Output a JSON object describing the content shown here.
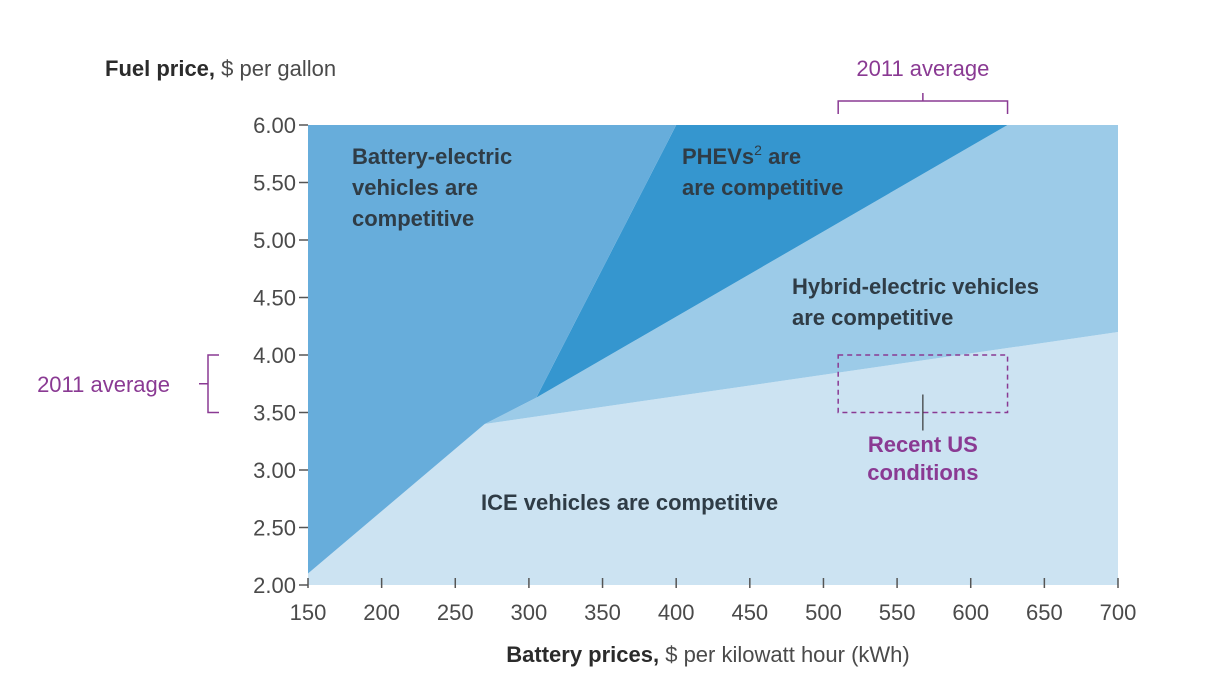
{
  "chart_data": {
    "type": "area",
    "ylabel_bold": "Fuel price,",
    "ylabel_rest": " $ per gallon",
    "xlabel_bold": "Battery prices,",
    "xlabel_rest": " $ per kilowatt hour (kWh)",
    "xlim": [
      150,
      700
    ],
    "ylim": [
      2.0,
      6.0
    ],
    "x_ticks": [
      "150",
      "200",
      "250",
      "300",
      "350",
      "400",
      "450",
      "500",
      "550",
      "600",
      "650",
      "700"
    ],
    "y_ticks": [
      "2.00",
      "2.50",
      "3.00",
      "3.50",
      "4.00",
      "4.50",
      "5.00",
      "5.50",
      "6.00"
    ],
    "x_tick_values": [
      150,
      200,
      250,
      300,
      350,
      400,
      450,
      500,
      550,
      600,
      650,
      700
    ],
    "y_tick_values": [
      2.0,
      2.5,
      3.0,
      3.5,
      4.0,
      4.5,
      5.0,
      5.5,
      6.0
    ],
    "regions": [
      {
        "name": "ICE vehicles are competitive",
        "label_lines": [
          "ICE vehicles are competitive"
        ],
        "label_at": [
          150,
          2.55
        ],
        "color": "#cce3f2",
        "polygon": [
          [
            150,
            2.1
          ],
          [
            270,
            3.4
          ],
          [
            700,
            4.2
          ],
          [
            700,
            2.0
          ],
          [
            150,
            2.0
          ]
        ]
      },
      {
        "name": "Hybrid-electric vehicles are competitive",
        "label_lines": [
          "Hybrid-electric vehicles",
          "are competitive"
        ],
        "label_at": [
          473,
          4.9
        ],
        "color": "#9ccbe8",
        "polygon": [
          [
            270,
            3.4
          ],
          [
            305,
            3.63
          ],
          [
            625,
            6.0
          ],
          [
            700,
            6.0
          ],
          [
            700,
            4.2
          ]
        ]
      },
      {
        "name": "PHEVs are competitive",
        "label_lines": [
          "PHEVs",
          "are competitive"
        ],
        "label_at": [
          400,
          5.85
        ],
        "color": "#3596cf",
        "polygon": [
          [
            305,
            3.63
          ],
          [
            400,
            6.0
          ],
          [
            625,
            6.0
          ]
        ]
      },
      {
        "name": "Battery-electric vehicles are competitive",
        "label_lines": [
          "Battery-electric",
          "vehicles are",
          "competitive"
        ],
        "label_at": [
          180,
          5.85
        ],
        "color": "#67addb",
        "polygon": [
          [
            150,
            2.1
          ],
          [
            150,
            6.0
          ],
          [
            400,
            6.0
          ],
          [
            305,
            3.63
          ],
          [
            270,
            3.4
          ]
        ]
      }
    ],
    "phev_superscript": "2",
    "annotations": {
      "top_range_label": "2011 average",
      "top_range": [
        510,
        625
      ],
      "left_range_label": "2011 average",
      "left_range": [
        3.5,
        4.0
      ],
      "box_label_lines": [
        "Recent US",
        "conditions"
      ],
      "box_x": [
        510,
        625
      ],
      "box_y": [
        3.5,
        4.0
      ]
    },
    "colors": {
      "annotation": "#8a3a93",
      "region_text": "#2f3c46"
    }
  }
}
